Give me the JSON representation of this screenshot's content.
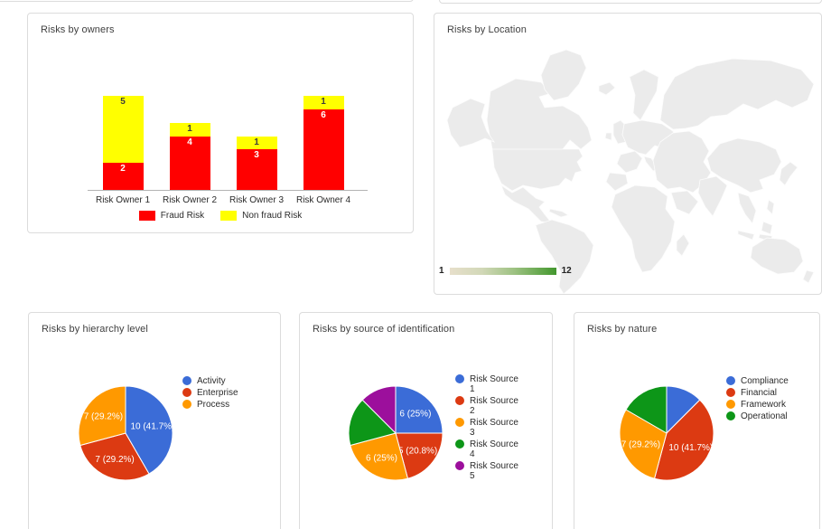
{
  "panels": {
    "owners": {
      "title": "Risks by owners"
    },
    "location": {
      "title": "Risks by Location"
    },
    "hierarchy": {
      "title": "Risks by hierarchy level"
    },
    "source": {
      "title": "Risks by source of identification"
    },
    "nature": {
      "title": "Risks by nature"
    }
  },
  "chart_data": [
    {
      "id": "owners",
      "type": "bar",
      "stacked": true,
      "title": "Risks by owners",
      "categories": [
        "Risk Owner 1",
        "Risk Owner 2",
        "Risk Owner 3",
        "Risk Owner 4"
      ],
      "series": [
        {
          "name": "Fraud Risk",
          "color": "#ff0000",
          "label_color": "#ffffff",
          "values": [
            2,
            4,
            3,
            6
          ]
        },
        {
          "name": "Non fraud Risk",
          "color": "#ffff00",
          "label_color": "#3c3c3c",
          "values": [
            5,
            1,
            1,
            1
          ]
        }
      ],
      "ylim": [
        0,
        7
      ],
      "grid": false,
      "legend_position": "bottom"
    },
    {
      "id": "location",
      "type": "heatmap",
      "title": "Risks by Location",
      "legend": {
        "min": "1",
        "max": "12",
        "min_color": "#e7dfcb",
        "max_color": "#43962f"
      },
      "base_land_color": "#ebebeb",
      "countries": [
        {
          "name": "United States",
          "color": "#b2cfa0"
        },
        {
          "name": "France",
          "color": "#e9dcc6"
        },
        {
          "name": "India",
          "color": "#ccd3b4"
        },
        {
          "name": "China",
          "color": "#b8d1a2"
        }
      ]
    },
    {
      "id": "hierarchy",
      "type": "pie",
      "title": "Risks by hierarchy level",
      "legend_position": "right",
      "slices": [
        {
          "name": "Activity",
          "value": 10,
          "pct": "41.7%",
          "display_label": "10 (41.7%)",
          "color": "#3b6cd7"
        },
        {
          "name": "Enterprise",
          "value": 7,
          "pct": "29.2%",
          "display_label": "7 (29.2%)",
          "color": "#dc3a12"
        },
        {
          "name": "Process",
          "value": 7,
          "pct": "29.2%",
          "display_label": "7 (29.2%)",
          "color": "#ff9900"
        }
      ]
    },
    {
      "id": "source",
      "type": "pie",
      "title": "Risks by source of identification",
      "legend_position": "right",
      "slices": [
        {
          "name": "Risk Source 1",
          "value": 6,
          "pct": "25%",
          "display_label": "6 (25%)",
          "color": "#3b6cd7"
        },
        {
          "name": "Risk Source 2",
          "value": 5,
          "pct": "20.8%",
          "display_label": "5 (20.8%)",
          "color": "#dc3a12"
        },
        {
          "name": "Risk Source 3",
          "value": 6,
          "pct": "25%",
          "display_label": "6 (25%)",
          "color": "#ff9900"
        },
        {
          "name": "Risk Source 4",
          "value": 4,
          "pct": "16.7%",
          "display_label": "",
          "color": "#0d9618"
        },
        {
          "name": "Risk Source 5",
          "value": 3,
          "pct": "12.5%",
          "display_label": "",
          "color": "#9c0f9c"
        }
      ]
    },
    {
      "id": "nature",
      "type": "pie",
      "title": "Risks by nature",
      "legend_position": "right",
      "slices": [
        {
          "name": "Compliance",
          "value": 3,
          "pct": "12.5%",
          "display_label": "",
          "color": "#3b6cd7"
        },
        {
          "name": "Financial",
          "value": 10,
          "pct": "41.7%",
          "display_label": "10 (41.7%)",
          "color": "#dc3a12"
        },
        {
          "name": "Framework",
          "value": 7,
          "pct": "29.2%",
          "display_label": "7 (29.2%)",
          "color": "#ff9900"
        },
        {
          "name": "Operational",
          "value": 4,
          "pct": "16.7%",
          "display_label": "",
          "color": "#0d9618"
        }
      ]
    }
  ]
}
